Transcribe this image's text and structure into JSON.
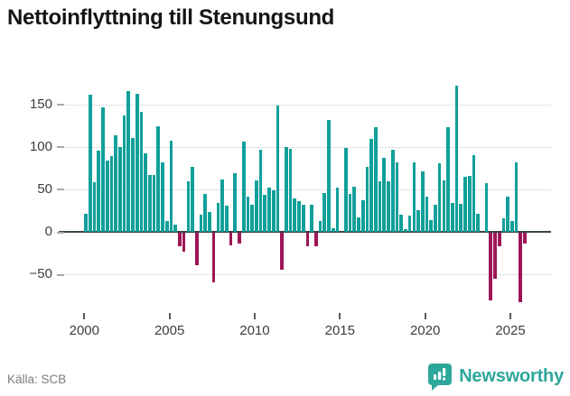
{
  "title": "Nettoinflyttning till Stenungsund",
  "footer": {
    "source": "Källa: SCB"
  },
  "logo": {
    "text": "Newsworthy"
  },
  "colors": {
    "positive_bar": "#11a09a",
    "negative_bar": "#9d1656",
    "zero_line": "#36454b",
    "gridline": "#e3e3e3",
    "axis_text": "#3c3c3c",
    "source_text": "#7c7c7c",
    "logo_teal": "#2da79c",
    "title_text": "#151515"
  },
  "chart_data": {
    "type": "bar",
    "title": "Nettoinflyttning till Stenungsund",
    "xlabel": "",
    "ylabel": "",
    "grid": "horizontal",
    "legend": "none",
    "ylim": [
      -95,
      180
    ],
    "y_ticks": [
      150,
      100,
      50,
      0,
      -50
    ],
    "y_tick_labels": [
      "150",
      "100",
      "50",
      "0",
      "−50"
    ],
    "x_tick_years": [
      2000,
      2005,
      2010,
      2015,
      2020,
      2025
    ],
    "x_tick_labels": [
      "2000",
      "2005",
      "2010",
      "2015",
      "2020",
      "2025"
    ],
    "categories": [
      "2000 Q1",
      "2000 Q2",
      "2000 Q3",
      "2000 Q4",
      "2001 Q1",
      "2001 Q2",
      "2001 Q3",
      "2001 Q4",
      "2002 Q1",
      "2002 Q2",
      "2002 Q3",
      "2002 Q4",
      "2003 Q1",
      "2003 Q2",
      "2003 Q3",
      "2003 Q4",
      "2004 Q1",
      "2004 Q2",
      "2004 Q3",
      "2004 Q4",
      "2005 Q1",
      "2005 Q2",
      "2005 Q3",
      "2005 Q4",
      "2006 Q1",
      "2006 Q2",
      "2006 Q3",
      "2006 Q4",
      "2007 Q1",
      "2007 Q2",
      "2007 Q3",
      "2007 Q4",
      "2008 Q1",
      "2008 Q2",
      "2008 Q3",
      "2008 Q4",
      "2009 Q1",
      "2009 Q2",
      "2009 Q3",
      "2009 Q4",
      "2010 Q1",
      "2010 Q2",
      "2010 Q3",
      "2010 Q4",
      "2011 Q1",
      "2011 Q2",
      "2011 Q3",
      "2011 Q4",
      "2012 Q1",
      "2012 Q2",
      "2012 Q3",
      "2012 Q4",
      "2013 Q1",
      "2013 Q2",
      "2013 Q3",
      "2013 Q4",
      "2014 Q1",
      "2014 Q2",
      "2014 Q3",
      "2014 Q4",
      "2015 Q1",
      "2015 Q2",
      "2015 Q3",
      "2015 Q4",
      "2016 Q1",
      "2016 Q2",
      "2016 Q3",
      "2016 Q4",
      "2017 Q1",
      "2017 Q2",
      "2017 Q3",
      "2017 Q4",
      "2018 Q1",
      "2018 Q2",
      "2018 Q3",
      "2018 Q4",
      "2019 Q1",
      "2019 Q2",
      "2019 Q3",
      "2019 Q4",
      "2020 Q1",
      "2020 Q2",
      "2020 Q3",
      "2020 Q4",
      "2021 Q1",
      "2021 Q2",
      "2021 Q3",
      "2021 Q4",
      "2022 Q1",
      "2022 Q2",
      "2022 Q3",
      "2022 Q4",
      "2023 Q1",
      "2023 Q2",
      "2023 Q3",
      "2023 Q4",
      "2024 Q1",
      "2024 Q2",
      "2024 Q3",
      "2024 Q4",
      "2025 Q1",
      "2025 Q2",
      "2025 Q3",
      "2025 Q4"
    ],
    "values": [
      21,
      161,
      58,
      95,
      146,
      84,
      89,
      113,
      100,
      137,
      165,
      110,
      162,
      141,
      92,
      67,
      67,
      124,
      82,
      13,
      107,
      9,
      -16,
      -22,
      59,
      76,
      -38,
      20,
      45,
      23,
      -58,
      34,
      62,
      31,
      -14,
      69,
      -12,
      106,
      41,
      32,
      60,
      96,
      43,
      52,
      49,
      148,
      -43,
      100,
      98,
      39,
      36,
      32,
      -15,
      32,
      -15,
      13,
      46,
      132,
      4,
      52,
      0,
      99,
      45,
      53,
      17,
      37,
      76,
      109,
      123,
      59,
      87,
      59,
      97,
      82,
      20,
      3,
      19,
      82,
      25,
      71,
      41,
      14,
      32,
      81,
      60,
      123,
      34,
      172,
      33,
      65,
      66,
      90,
      21,
      0,
      57,
      -79,
      -54,
      -16,
      16,
      41,
      13,
      82,
      -81,
      -12
    ]
  }
}
